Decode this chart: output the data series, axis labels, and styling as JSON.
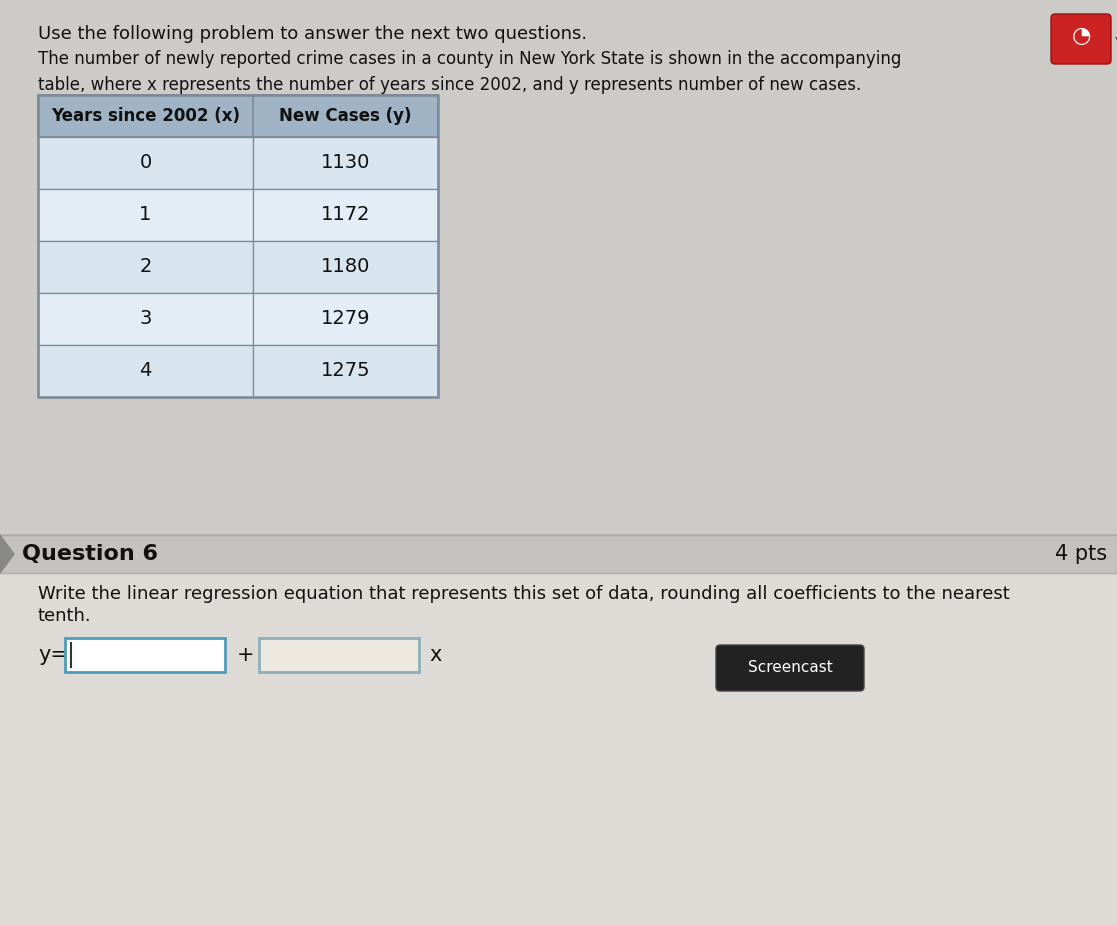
{
  "title_text": "Use the following problem to answer the next two questions.",
  "intro_text": "The number of newly reported crime cases in a county in New York State is shown in the accompanying\ntable, where x represents the number of years since 2002, and y represents number of new cases.",
  "col1_header": "Years since 2002 (x)",
  "col2_header": "New Cases (y)",
  "x_values": [
    0,
    1,
    2,
    3,
    4
  ],
  "y_values": [
    1130,
    1172,
    1180,
    1279,
    1275
  ],
  "question_label": "Question 6",
  "points_label": "4 pts",
  "question_text_line1": "Write the linear regression equation that represents this set of data, rounding all coefficients to the nearest",
  "question_text_line2": "tenth.",
  "equation_prefix": "y=",
  "plus_sign": "+",
  "x_suffix": "x",
  "screencast_label": "Screencast",
  "bg_top": "#cccbc8",
  "bg_bottom": "#dedad5",
  "question_bar_bg": "#c4c2be",
  "question_bar_border": "#b0aeaa",
  "table_header_bg": "#9fb3c4",
  "table_row_odd": "#d8e4ee",
  "table_row_even": "#e4edf5",
  "table_border": "#7a8a96",
  "input_box1_border": "#4d9db8",
  "input_box2_border": "#8ab0b8",
  "input_box1_bg": "#ffffff",
  "input_box2_bg": "#ede8df",
  "screencast_bg": "#222222",
  "screencast_text": "#ffffff",
  "icon_bg": "#cc2222",
  "separator_color": "#aaaaaa",
  "text_color": "#111111",
  "title_fontsize": 13,
  "intro_fontsize": 12,
  "table_header_fontsize": 12,
  "table_data_fontsize": 14,
  "question_label_fontsize": 16,
  "pts_fontsize": 15,
  "question_text_fontsize": 13,
  "equation_fontsize": 15
}
